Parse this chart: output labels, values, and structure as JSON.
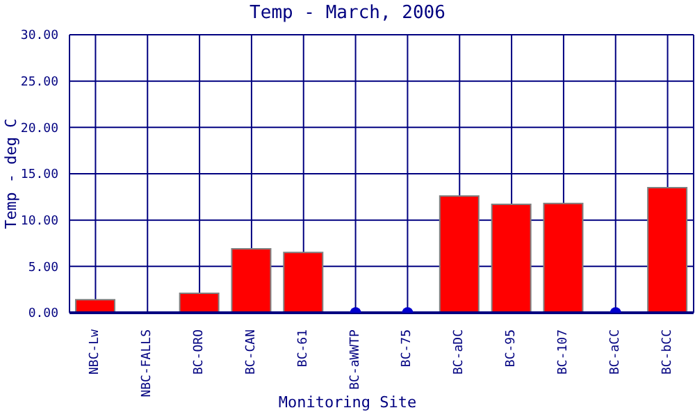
{
  "chart_data": {
    "type": "bar",
    "title": "Temp - March, 2006",
    "xlabel": "Monitoring Site",
    "ylabel": "Temp - deg C",
    "categories": [
      "NBC-Lw",
      "NBC-FALLS",
      "BC-ORO",
      "BC-CAN",
      "BC-61",
      "BC-aWWTP",
      "BC-75",
      "BC-aDC",
      "BC-95",
      "BC-107",
      "BC-aCC",
      "BC-bCC"
    ],
    "series": [
      {
        "color": "#ff0000",
        "values": [
          1.4,
          0,
          2.1,
          6.9,
          6.5,
          null,
          null,
          12.6,
          11.7,
          11.8,
          null,
          13.5
        ]
      },
      {
        "type": "scatter",
        "color": "#0000cc",
        "x": [
          "BC-aWWTP",
          "BC-75",
          "BC-aCC"
        ],
        "values": [
          0,
          0,
          0
        ]
      }
    ],
    "ylim": [
      0,
      30
    ],
    "yticks": [
      {
        "value": 0,
        "label": "0.00"
      },
      {
        "value": 5,
        "label": "5.00"
      },
      {
        "value": 10,
        "label": "10.00"
      },
      {
        "value": 15,
        "label": "15.00"
      },
      {
        "value": 20,
        "label": "20.00"
      },
      {
        "value": 25,
        "label": "25.00"
      },
      {
        "value": 30,
        "label": "30.00"
      }
    ],
    "grid": true,
    "legend": false
  }
}
